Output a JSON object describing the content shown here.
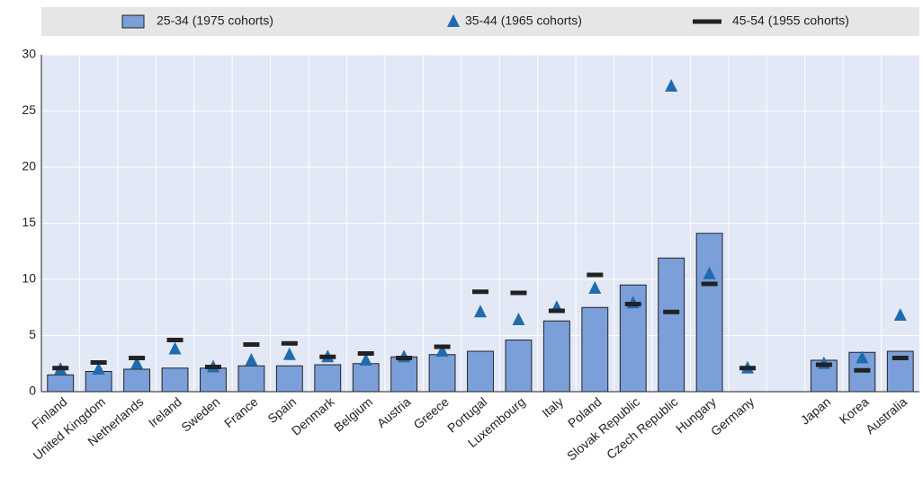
{
  "chart_data": {
    "type": "bar",
    "categories": [
      "Finland",
      "United Kingdom",
      "Netherlands",
      "Ireland",
      "Sweden",
      "France",
      "Spain",
      "Denmark",
      "Belgium",
      "Austria",
      "Greece",
      "Portugal",
      "Luxembourg",
      "Italy",
      "Poland",
      "Slovak Republic",
      "Czech Republic",
      "Hungary",
      "Germany",
      null,
      "Japan",
      "Korea",
      "Australia"
    ],
    "series": [
      {
        "name": "25-34 (1975 cohorts)",
        "marker": "bar",
        "color": "#7b9fd9",
        "values": [
          1.5,
          1.8,
          2.0,
          2.1,
          2.1,
          2.3,
          2.3,
          2.4,
          2.5,
          3.1,
          3.3,
          3.6,
          4.6,
          6.3,
          7.5,
          9.5,
          11.9,
          14.1,
          null,
          null,
          2.8,
          3.5,
          3.6
        ]
      },
      {
        "name": "35-44 (1965 cohorts)",
        "marker": "triangle",
        "color": "#1f6bb0",
        "values": [
          2.0,
          2.0,
          2.5,
          3.8,
          2.2,
          2.8,
          3.3,
          3.1,
          2.8,
          3.1,
          3.6,
          7.1,
          6.4,
          7.5,
          9.2,
          7.9,
          27.2,
          10.5,
          2.1,
          null,
          2.5,
          3.0,
          6.8
        ]
      },
      {
        "name": "45-54 (1955 cohorts)",
        "marker": "dash",
        "color": "#222222",
        "values": [
          2.1,
          2.6,
          3.0,
          4.6,
          2.2,
          4.2,
          4.3,
          3.1,
          3.4,
          3.0,
          4.0,
          8.9,
          8.8,
          7.2,
          10.4,
          7.8,
          7.1,
          9.6,
          2.1,
          null,
          2.4,
          1.9,
          3.0
        ]
      }
    ],
    "ylim": [
      0,
      30
    ],
    "yticks": [
      0,
      5,
      10,
      15,
      20,
      25,
      30
    ],
    "grid": true
  }
}
